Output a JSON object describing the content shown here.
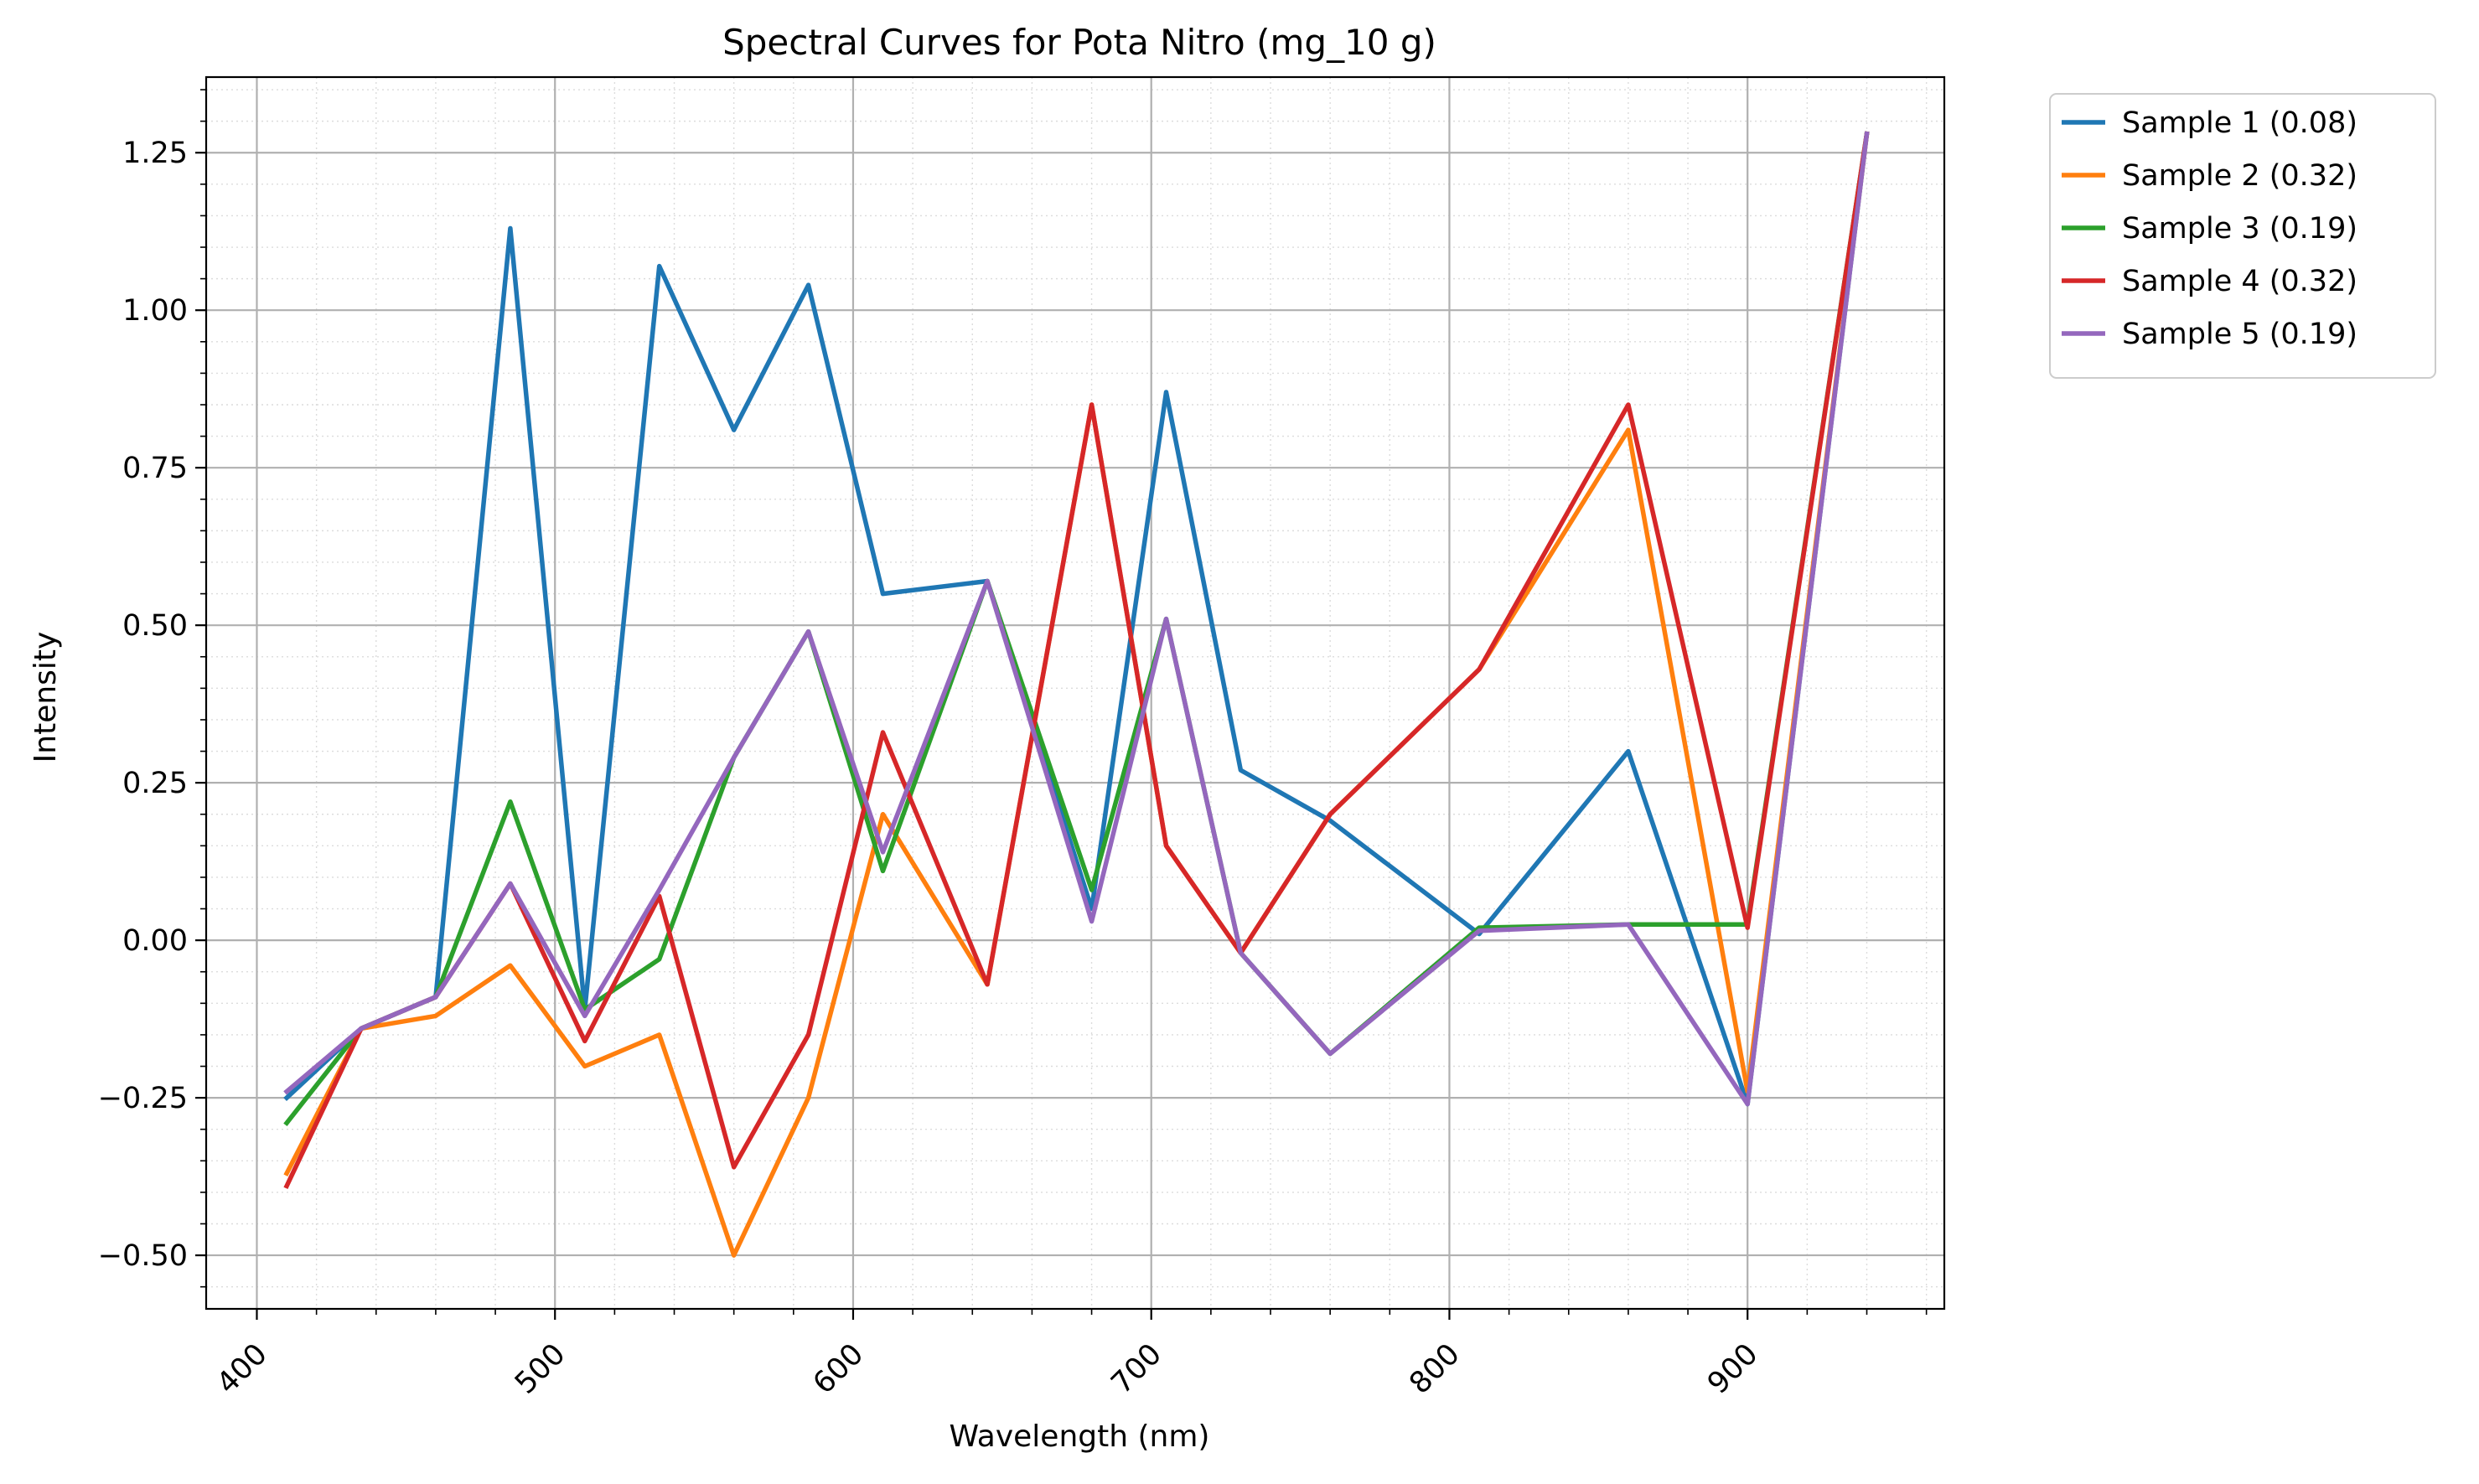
{
  "chart_data": {
    "type": "line",
    "title": "Spectral Curves for Pota Nitro (mg_10 g)",
    "xlabel": "Wavelength (nm)",
    "ylabel": "Intensity",
    "xlim": [
      383,
      966
    ],
    "ylim": [
      -0.585,
      1.37
    ],
    "xticks": [
      400,
      500,
      600,
      700,
      800,
      900
    ],
    "xtick_labels": [
      "400",
      "500",
      "600",
      "700",
      "800",
      "900"
    ],
    "yticks": [
      -0.5,
      -0.25,
      0.0,
      0.25,
      0.5,
      0.75,
      1.0,
      1.25
    ],
    "ytick_labels": [
      "−0.50",
      "−0.25",
      "0.00",
      "0.25",
      "0.50",
      "0.75",
      "1.00",
      "1.25"
    ],
    "grid": true,
    "minor_grid": true,
    "legend_position": "outside-top-right",
    "x": [
      410,
      435,
      460,
      485,
      510,
      535,
      560,
      585,
      610,
      645,
      680,
      705,
      730,
      760,
      810,
      860,
      900,
      940
    ],
    "series": [
      {
        "name": "Sample 1 (0.08)",
        "color": "#1f77b4",
        "values": [
          -0.25,
          -0.14,
          -0.09,
          1.13,
          -0.11,
          1.07,
          0.81,
          1.04,
          0.55,
          0.57,
          0.05,
          0.87,
          0.27,
          0.19,
          0.01,
          0.3,
          -0.26,
          1.28
        ]
      },
      {
        "name": "Sample 2 (0.32)",
        "color": "#ff7f0e",
        "values": [
          -0.37,
          -0.14,
          -0.12,
          -0.04,
          -0.2,
          -0.15,
          -0.5,
          -0.25,
          0.2,
          -0.07,
          0.85,
          0.15,
          -0.02,
          0.2,
          0.43,
          0.81,
          -0.24,
          1.28
        ]
      },
      {
        "name": "Sample 3 (0.19)",
        "color": "#2ca02c",
        "values": [
          -0.29,
          -0.14,
          -0.09,
          0.22,
          -0.11,
          -0.03,
          0.29,
          0.49,
          0.11,
          0.57,
          0.08,
          0.51,
          -0.02,
          -0.18,
          0.02,
          0.025,
          0.025,
          1.28
        ]
      },
      {
        "name": "Sample 4 (0.32)",
        "color": "#d62728",
        "values": [
          -0.39,
          -0.14,
          -0.09,
          0.09,
          -0.16,
          0.07,
          -0.36,
          -0.15,
          0.33,
          -0.07,
          0.85,
          0.15,
          -0.02,
          0.2,
          0.43,
          0.85,
          0.02,
          1.28
        ]
      },
      {
        "name": "Sample 5 (0.19)",
        "color": "#9467bd",
        "values": [
          -0.24,
          -0.14,
          -0.09,
          0.09,
          -0.12,
          0.08,
          0.29,
          0.49,
          0.14,
          0.57,
          0.03,
          0.51,
          -0.02,
          -0.18,
          0.015,
          0.025,
          -0.26,
          1.28
        ]
      }
    ]
  }
}
